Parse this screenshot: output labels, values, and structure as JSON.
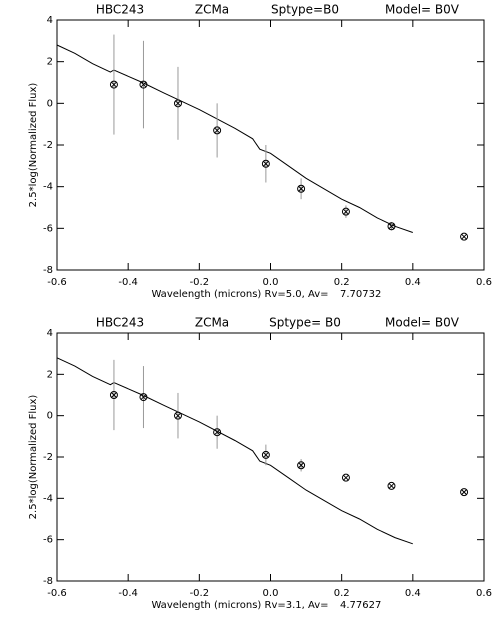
{
  "chart_data": [
    {
      "type": "scatter",
      "title_parts": [
        "HBC243",
        "ZCMa",
        "Sptype=B0",
        "Model= B0V"
      ],
      "xlabel": "Wavelength (microns) Rv=5.0, Av=",
      "av_value": "7.70732",
      "ylabel": "2.5*log(Normalized Flux)",
      "xlim": [
        -0.6,
        0.6
      ],
      "ylim": [
        -8,
        4
      ],
      "xticks": [
        -0.6,
        -0.4,
        -0.2,
        {
          "value": 0,
          "label": "0.0"
        },
        0.2,
        0.4,
        0.6
      ],
      "yticks": [
        -8,
        -6,
        -4,
        -2,
        0,
        2,
        4
      ],
      "model": {
        "color": "#000000",
        "x": [
          -0.6,
          -0.55,
          -0.5,
          -0.45,
          -0.44,
          -0.4,
          -0.36,
          -0.3,
          -0.2,
          -0.1,
          -0.05,
          -0.03,
          0.0,
          0.05,
          0.1,
          0.2,
          0.25,
          0.3,
          0.35,
          0.4
        ],
        "values": [
          2.8,
          2.4,
          1.9,
          1.5,
          1.6,
          1.3,
          1.0,
          0.5,
          -0.3,
          -1.2,
          -1.7,
          -2.2,
          -2.4,
          -3.0,
          -3.6,
          -4.6,
          -5.0,
          -5.5,
          -5.9,
          -6.2
        ]
      },
      "points": {
        "color": "#000000",
        "error_color": "#999999",
        "x": [
          -0.44,
          -0.357,
          -0.26,
          -0.15,
          -0.013,
          0.086,
          0.212,
          0.34,
          0.544
        ],
        "values": [
          0.9,
          0.9,
          0.0,
          -1.3,
          -2.9,
          -4.1,
          -5.2,
          -5.9,
          -6.4
        ],
        "errors": [
          2.4,
          2.1,
          1.75,
          1.3,
          0.9,
          0.5,
          0.3,
          0.2,
          0
        ]
      }
    },
    {
      "type": "scatter",
      "title_parts": [
        "HBC243",
        "ZCMa",
        "Sptype= B0",
        "Model= B0V"
      ],
      "xlabel": "Wavelength (microns) Rv=3.1, Av=",
      "av_value": "4.77627",
      "ylabel": "2.5*log(Normalized Flux)",
      "xlim": [
        -0.6,
        0.6
      ],
      "ylim": [
        -8,
        4
      ],
      "xticks": [
        -0.6,
        -0.4,
        -0.2,
        {
          "value": 0,
          "label": "0.0"
        },
        0.2,
        0.4,
        0.6
      ],
      "yticks": [
        -8,
        -6,
        -4,
        -2,
        0,
        2,
        4
      ],
      "model": {
        "color": "#000000",
        "x": [
          -0.6,
          -0.55,
          -0.5,
          -0.45,
          -0.44,
          -0.4,
          -0.36,
          -0.3,
          -0.2,
          -0.1,
          -0.05,
          -0.03,
          0.0,
          0.05,
          0.1,
          0.2,
          0.25,
          0.3,
          0.35,
          0.4
        ],
        "values": [
          2.8,
          2.4,
          1.9,
          1.5,
          1.6,
          1.3,
          1.0,
          0.5,
          -0.3,
          -1.2,
          -1.7,
          -2.2,
          -2.4,
          -3.0,
          -3.6,
          -4.6,
          -5.0,
          -5.5,
          -5.9,
          -6.2
        ]
      },
      "points": {
        "color": "#000000",
        "error_color": "#999999",
        "x": [
          -0.44,
          -0.357,
          -0.26,
          -0.15,
          -0.013,
          0.086,
          0.212,
          0.34,
          0.544
        ],
        "values": [
          1.0,
          0.9,
          0.0,
          -0.8,
          -1.9,
          -2.4,
          -3.0,
          -3.4,
          -3.7
        ],
        "errors": [
          1.7,
          1.5,
          1.1,
          0.8,
          0.5,
          0.3,
          0,
          0,
          0
        ]
      }
    }
  ]
}
